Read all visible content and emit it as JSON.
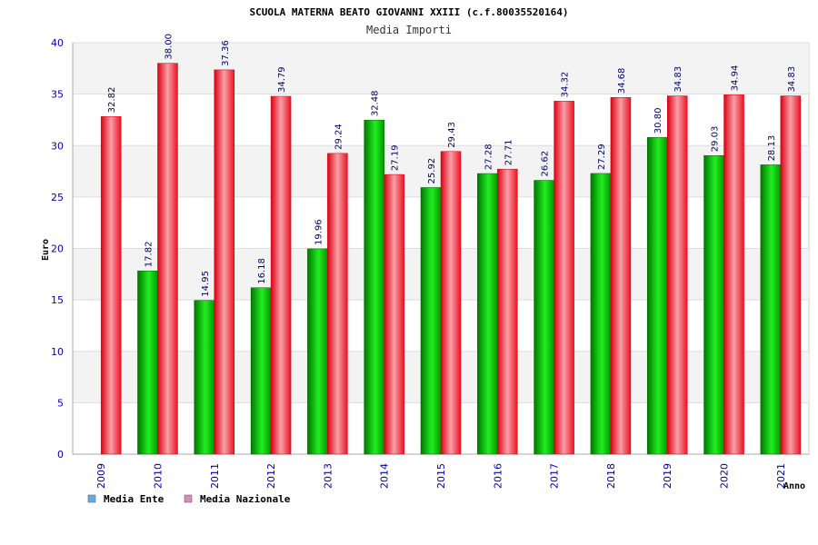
{
  "chart_data": {
    "type": "bar",
    "title": "SCUOLA MATERNA BEATO GIOVANNI XXIII (c.f.80035520164)",
    "subtitle": "Media Importi",
    "ylabel": "Euro",
    "xlabel": "Anno",
    "ylim": [
      0,
      40
    ],
    "yticks": [
      "0",
      "5",
      "10",
      "15",
      "20",
      "25",
      "30",
      "35",
      "40"
    ],
    "grid": true,
    "legend_position": "bottom-left",
    "categories": [
      "2009",
      "2010",
      "2011",
      "2012",
      "2013",
      "2014",
      "2015",
      "2016",
      "2017",
      "2018",
      "2019",
      "2020",
      "2021"
    ],
    "series": [
      {
        "name": "Media Ente",
        "color": "#00cc00",
        "legend_color": "#66aaee",
        "values": [
          null,
          17.82,
          14.95,
          16.18,
          19.96,
          32.48,
          25.92,
          27.28,
          26.62,
          27.29,
          30.8,
          29.03,
          28.13
        ],
        "labels": [
          "",
          "17.82",
          "14.95",
          "16.18",
          "19.96",
          "32.48",
          "25.92",
          "27.28",
          "26.62",
          "27.29",
          "30.80",
          "29.03",
          "28.13"
        ]
      },
      {
        "name": "Media Nazionale",
        "color": "#ee1122",
        "legend_color": "#dd88bb",
        "values": [
          32.82,
          38.0,
          37.36,
          34.79,
          29.24,
          27.19,
          29.43,
          27.71,
          34.32,
          34.68,
          34.83,
          34.94,
          34.83
        ],
        "labels": [
          "32.82",
          "38.00",
          "37.36",
          "34.79",
          "29.24",
          "27.19",
          "29.43",
          "27.71",
          "34.32",
          "34.68",
          "34.83",
          "34.94",
          "34.83"
        ]
      }
    ]
  }
}
